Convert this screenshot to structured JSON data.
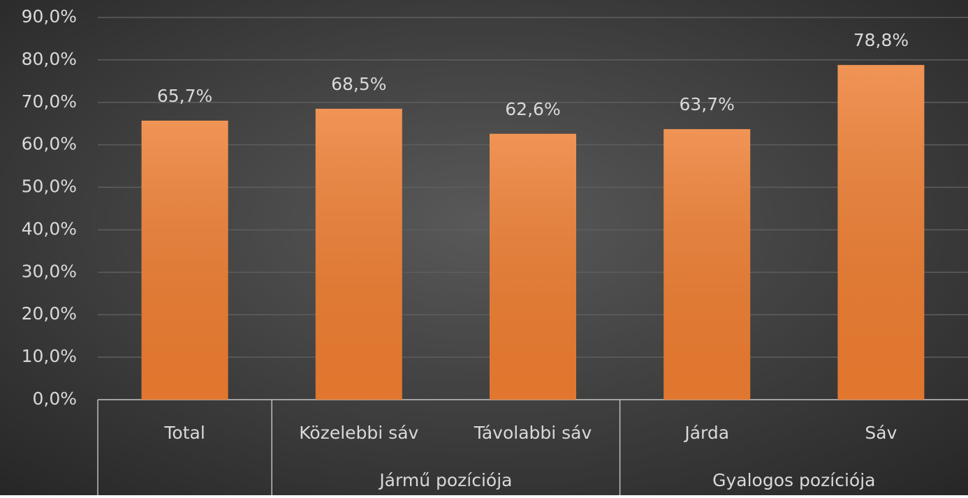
{
  "chart_data": {
    "type": "bar",
    "groups": [
      {
        "name": null,
        "categories": [
          "Total"
        ]
      },
      {
        "name": "Jármű pozíciója",
        "categories": [
          "Közelebbi sáv",
          "Távolabbi sáv"
        ]
      },
      {
        "name": "Gyalogos pozíciója",
        "categories": [
          "Járda",
          "Sáv"
        ]
      }
    ],
    "values": [
      65.7,
      68.5,
      62.6,
      63.7,
      78.8
    ],
    "value_labels": [
      "65,7%",
      "68,5%",
      "62,6%",
      "63,7%",
      "78,8%"
    ],
    "color": "#ed7d31",
    "ylim": [
      0,
      90
    ],
    "yticks": [
      {
        "value": 0,
        "label": "0,0%"
      },
      {
        "value": 10,
        "label": "10,0%"
      },
      {
        "value": 20,
        "label": "20,0%"
      },
      {
        "value": 30,
        "label": "30,0%"
      },
      {
        "value": 40,
        "label": "40,0%"
      },
      {
        "value": 50,
        "label": "50,0%"
      },
      {
        "value": 60,
        "label": "60,0%"
      },
      {
        "value": 70,
        "label": "70,0%"
      },
      {
        "value": 80,
        "label": "80,0%"
      },
      {
        "value": 90,
        "label": "90,0%"
      }
    ],
    "grid": true
  }
}
